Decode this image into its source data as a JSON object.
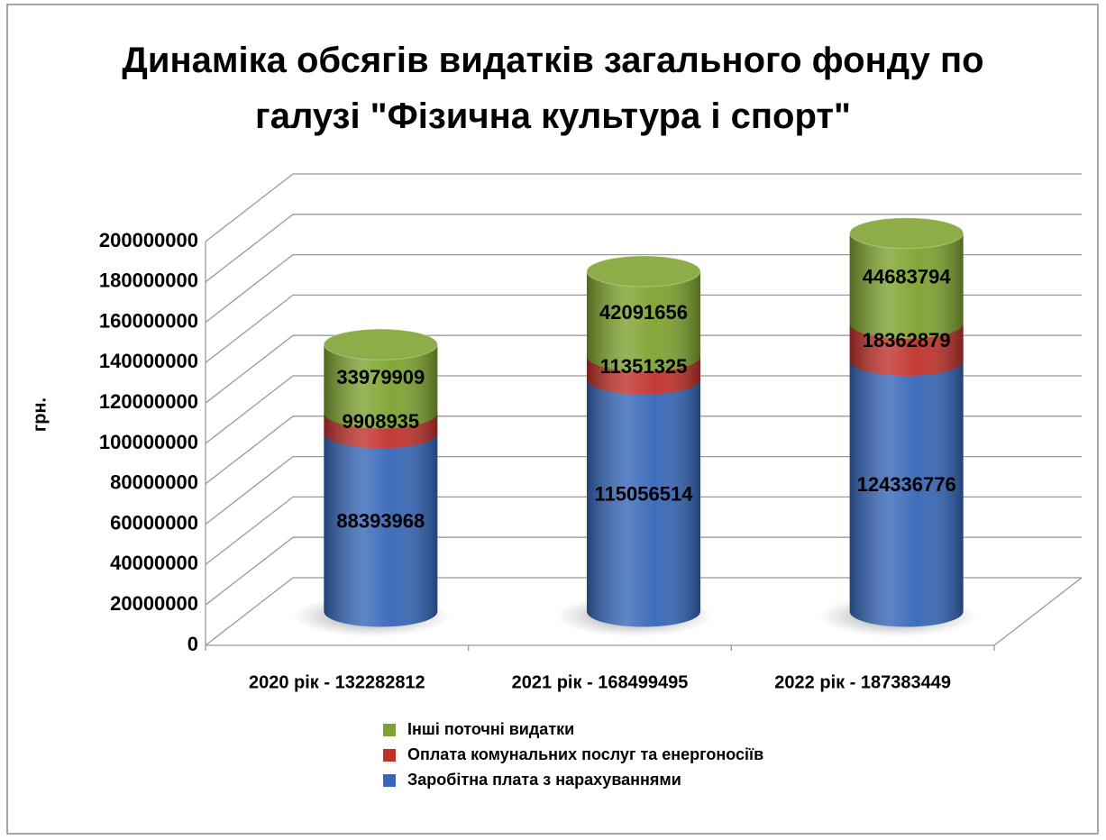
{
  "chart_data": {
    "type": "bar",
    "stacked": true,
    "title": "Динаміка обсягів видатків загального фонду по галузі \"Фізична культура і спорт\"",
    "y_label": "грн.",
    "categories": [
      "2020 рік - 132282812",
      "2021 рік - 168499495",
      "2022 рік - 187383449"
    ],
    "series": [
      {
        "name": "Заробітна плата з нарахуваннями",
        "color": "#3566b8",
        "values": [
          88393968,
          115056514,
          124336776
        ]
      },
      {
        "name": "Оплата комунальних послуг та енергоносіїв",
        "color": "#c0302a",
        "values": [
          9908935,
          11351325,
          18362879
        ]
      },
      {
        "name": "Інші поточні видатки",
        "color": "#7da22f",
        "values": [
          33979909,
          42091656,
          44683794
        ]
      }
    ],
    "ylim": [
      0,
      200000000
    ],
    "yticks": [
      0,
      20000000,
      40000000,
      60000000,
      80000000,
      100000000,
      120000000,
      140000000,
      160000000,
      180000000,
      200000000
    ],
    "grid": true
  }
}
